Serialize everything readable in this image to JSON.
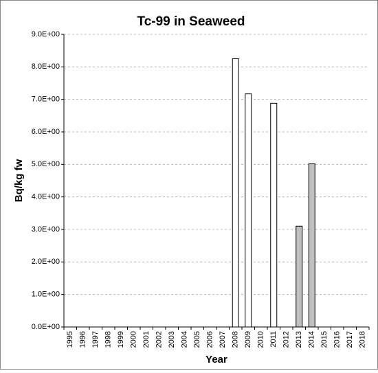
{
  "chart_data": {
    "type": "bar",
    "title": "Tc-99 in Seaweed",
    "x_label": "Year",
    "y_label": "Bq/kg fw",
    "categories": [
      "1995",
      "1996",
      "1997",
      "1998",
      "1999",
      "2000",
      "2001",
      "2002",
      "2003",
      "2004",
      "2005",
      "2006",
      "2007",
      "2008",
      "2009",
      "2010",
      "2011",
      "2012",
      "2013",
      "2014",
      "2015",
      "2016",
      "2017",
      "2018"
    ],
    "values": [
      null,
      null,
      null,
      null,
      null,
      null,
      null,
      null,
      null,
      null,
      null,
      null,
      null,
      8.25,
      7.17,
      null,
      6.88,
      null,
      3.1,
      5.02,
      null,
      null,
      null,
      null
    ],
    "colors": [
      null,
      null,
      null,
      null,
      null,
      null,
      null,
      null,
      null,
      null,
      null,
      null,
      null,
      "#ffffff",
      "#ffffff",
      null,
      "#ffffff",
      null,
      "#c0c0c0",
      "#c0c0c0",
      null,
      null,
      null,
      null
    ],
    "ylim": [
      0,
      9
    ],
    "yticks": [
      {
        "value": 0,
        "label": "0.0E+00"
      },
      {
        "value": 1,
        "label": "1.0E+00"
      },
      {
        "value": 2,
        "label": "2.0E+00"
      },
      {
        "value": 3,
        "label": "3.0E+00"
      },
      {
        "value": 4,
        "label": "4.0E+00"
      },
      {
        "value": 5,
        "label": "5.0E+00"
      },
      {
        "value": 6,
        "label": "6.0E+00"
      },
      {
        "value": 7,
        "label": "7.0E+00"
      },
      {
        "value": 8,
        "label": "8.0E+00"
      },
      {
        "value": 9,
        "label": "9.0E+00"
      }
    ],
    "grid": true
  }
}
